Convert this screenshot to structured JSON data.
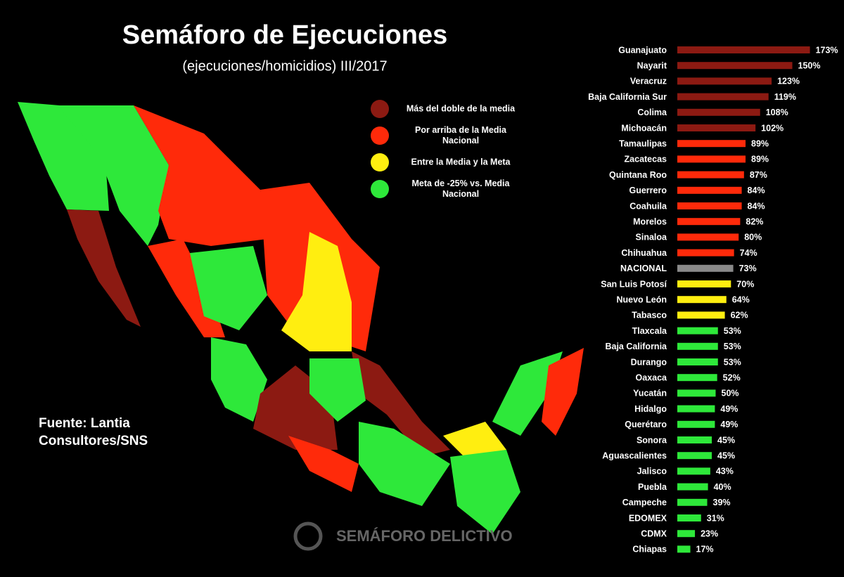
{
  "chart_data": {
    "type": "bar",
    "title": "Semáforo de Ejecuciones",
    "subtitle": "(ejecuciones/homicidios) III/2017",
    "source": [
      "Fuente: Lantia",
      "Consultores/SNS"
    ],
    "logo": "SEMÁFORO DELICTIVO",
    "legend": [
      {
        "label": [
          "Más del doble de la media"
        ],
        "color": "#8c1a12"
      },
      {
        "label": [
          "Por arriba de la Media",
          "Nacional"
        ],
        "color": "#ff2a0a"
      },
      {
        "label": [
          "Entre la Media y la Meta"
        ],
        "color": "#ffee10"
      },
      {
        "label": [
          "Meta de -25% vs. Media",
          "Nacional"
        ],
        "color": "#2ee83a"
      }
    ],
    "categories": [
      "Guanajuato",
      "Nayarit",
      "Veracruz",
      "Baja California Sur",
      "Colima",
      "Michoacán",
      "Tamaulipas",
      "Zacatecas",
      "Quintana Roo",
      "Guerrero",
      "Coahuila",
      "Morelos",
      "Sinaloa",
      "Chihuahua",
      "NACIONAL",
      "San Luis Potosí",
      "Nuevo León",
      "Tabasco",
      "Tlaxcala",
      "Baja California",
      "Durango",
      "Oaxaca",
      "Yucatán",
      "Hidalgo",
      "Querétaro",
      "Sonora",
      "Aguascalientes",
      "Jalisco",
      "Puebla",
      "Campeche",
      "EDOMEX",
      "CDMX",
      "Chiapas"
    ],
    "values": [
      173,
      150,
      123,
      119,
      108,
      102,
      89,
      89,
      87,
      84,
      84,
      82,
      80,
      74,
      73,
      70,
      64,
      62,
      53,
      53,
      53,
      52,
      50,
      49,
      49,
      45,
      45,
      43,
      40,
      39,
      31,
      23,
      17
    ],
    "value_labels": [
      "173%",
      "150%",
      "123%",
      "119%",
      "108%",
      "102%",
      "89%",
      "89%",
      "87%",
      "84%",
      "84%",
      "82%",
      "80%",
      "74%",
      "73%",
      "70%",
      "64%",
      "62%",
      "53%",
      "53%",
      "53%",
      "52%",
      "50%",
      "49%",
      "49%",
      "45%",
      "45%",
      "43%",
      "40%",
      "39%",
      "31%",
      "23%",
      "17%"
    ],
    "colors": [
      "#8c1a12",
      "#8c1a12",
      "#8c1a12",
      "#8c1a12",
      "#8c1a12",
      "#8c1a12",
      "#ff2a0a",
      "#ff2a0a",
      "#ff2a0a",
      "#ff2a0a",
      "#ff2a0a",
      "#ff2a0a",
      "#ff2a0a",
      "#ff2a0a",
      "#8a8a8a",
      "#ffee10",
      "#ffee10",
      "#ffee10",
      "#2ee83a",
      "#2ee83a",
      "#2ee83a",
      "#2ee83a",
      "#2ee83a",
      "#2ee83a",
      "#2ee83a",
      "#2ee83a",
      "#2ee83a",
      "#2ee83a",
      "#2ee83a",
      "#2ee83a",
      "#2ee83a",
      "#2ee83a",
      "#2ee83a"
    ]
  }
}
